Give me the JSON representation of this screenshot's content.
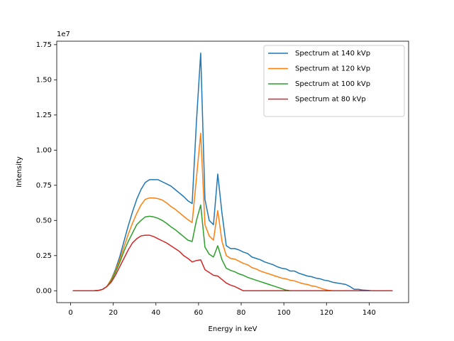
{
  "chart_data": {
    "type": "line",
    "xlabel": "Energy in keV",
    "ylabel": "Intensity",
    "y_offset_label": "1e7",
    "x": [
      1,
      3,
      5,
      7,
      9,
      11,
      13,
      15,
      17,
      19,
      21,
      23,
      25,
      27,
      29,
      31,
      33,
      35,
      37,
      39,
      41,
      43,
      45,
      47,
      49,
      51,
      53,
      55,
      57,
      59,
      61,
      63,
      65,
      67,
      69,
      71,
      73,
      75,
      77,
      79,
      81,
      83,
      85,
      87,
      89,
      91,
      93,
      95,
      97,
      99,
      101,
      103,
      105,
      107,
      109,
      111,
      113,
      115,
      117,
      119,
      121,
      123,
      125,
      127,
      129,
      131,
      133,
      135,
      137,
      139,
      141,
      143,
      145,
      147,
      149,
      151
    ],
    "series": [
      {
        "name": "Spectrum at 140 kVp",
        "color": "#1f77b4",
        "values": [
          0,
          0,
          0,
          0,
          0,
          0,
          0.002,
          0.01,
          0.03,
          0.08,
          0.15,
          0.24,
          0.35,
          0.46,
          0.56,
          0.65,
          0.72,
          0.77,
          0.79,
          0.79,
          0.79,
          0.775,
          0.76,
          0.745,
          0.72,
          0.695,
          0.67,
          0.64,
          0.62,
          1.2,
          1.69,
          0.65,
          0.5,
          0.47,
          0.83,
          0.55,
          0.32,
          0.3,
          0.3,
          0.29,
          0.275,
          0.265,
          0.24,
          0.23,
          0.22,
          0.205,
          0.195,
          0.185,
          0.17,
          0.16,
          0.155,
          0.14,
          0.14,
          0.125,
          0.115,
          0.105,
          0.1,
          0.09,
          0.085,
          0.075,
          0.07,
          0.06,
          0.055,
          0.05,
          0.045,
          0.03,
          0.01,
          0.01,
          0.005,
          0.003,
          0,
          0,
          0,
          0,
          0,
          0
        ]
      },
      {
        "name": "Spectrum at 120 kVp",
        "color": "#ff7f0e",
        "values": [
          0,
          0,
          0,
          0,
          0,
          0,
          0.002,
          0.01,
          0.03,
          0.08,
          0.14,
          0.22,
          0.31,
          0.4,
          0.48,
          0.55,
          0.61,
          0.65,
          0.66,
          0.66,
          0.655,
          0.645,
          0.625,
          0.6,
          0.58,
          0.555,
          0.53,
          0.505,
          0.485,
          0.8,
          1.12,
          0.47,
          0.39,
          0.36,
          0.57,
          0.35,
          0.25,
          0.23,
          0.225,
          0.21,
          0.195,
          0.185,
          0.165,
          0.155,
          0.14,
          0.13,
          0.12,
          0.11,
          0.1,
          0.09,
          0.085,
          0.075,
          0.07,
          0.06,
          0.05,
          0.045,
          0.035,
          0.03,
          0.02,
          0.01,
          0.003,
          0,
          0,
          0,
          0,
          0,
          0,
          0,
          0,
          0,
          0,
          0,
          0,
          0,
          0,
          0
        ]
      },
      {
        "name": "Spectrum at 100 kVp",
        "color": "#2ca02c",
        "values": [
          0,
          0,
          0,
          0,
          0,
          0,
          0.002,
          0.01,
          0.03,
          0.07,
          0.13,
          0.2,
          0.28,
          0.35,
          0.41,
          0.47,
          0.5,
          0.525,
          0.53,
          0.525,
          0.515,
          0.5,
          0.48,
          0.455,
          0.435,
          0.41,
          0.385,
          0.36,
          0.35,
          0.5,
          0.61,
          0.31,
          0.26,
          0.24,
          0.32,
          0.22,
          0.16,
          0.145,
          0.135,
          0.12,
          0.11,
          0.095,
          0.085,
          0.075,
          0.065,
          0.055,
          0.045,
          0.035,
          0.025,
          0.015,
          0.005,
          0,
          0,
          0,
          0,
          0,
          0,
          0,
          0,
          0,
          0,
          0,
          0,
          0,
          0,
          0,
          0,
          0,
          0,
          0,
          0,
          0,
          0,
          0,
          0,
          0
        ]
      },
      {
        "name": "Spectrum at 80 kVp",
        "color": "#d62728",
        "values": [
          0,
          0,
          0,
          0,
          0,
          0,
          0.002,
          0.01,
          0.03,
          0.06,
          0.11,
          0.17,
          0.23,
          0.29,
          0.34,
          0.37,
          0.39,
          0.395,
          0.395,
          0.385,
          0.37,
          0.355,
          0.34,
          0.32,
          0.3,
          0.28,
          0.25,
          0.23,
          0.205,
          0.215,
          0.22,
          0.15,
          0.13,
          0.11,
          0.105,
          0.08,
          0.055,
          0.04,
          0.03,
          0.015,
          0,
          0,
          0,
          0,
          0,
          0,
          0,
          0,
          0,
          0,
          0,
          0,
          0,
          0,
          0,
          0,
          0,
          0,
          0,
          0,
          0,
          0,
          0,
          0,
          0,
          0,
          0,
          0,
          0,
          0,
          0,
          0,
          0,
          0,
          0,
          0
        ]
      }
    ],
    "xlim": [
      -6.5,
      158.5
    ],
    "xticks": [
      0,
      20,
      40,
      60,
      80,
      100,
      120,
      140
    ],
    "ylim": [
      -0.0845,
      1.7745
    ],
    "yticks": [
      {
        "value": 0,
        "label": "0.00"
      },
      {
        "value": 0.25,
        "label": "0.25"
      },
      {
        "value": 0.5,
        "label": "0.50"
      },
      {
        "value": 0.75,
        "label": "0.75"
      },
      {
        "value": 1,
        "label": "1.00"
      },
      {
        "value": 1.25,
        "label": "1.25"
      },
      {
        "value": 1.5,
        "label": "1.50"
      },
      {
        "value": 1.75,
        "label": "1.75"
      }
    ],
    "legend": "upper right",
    "grid": false
  }
}
